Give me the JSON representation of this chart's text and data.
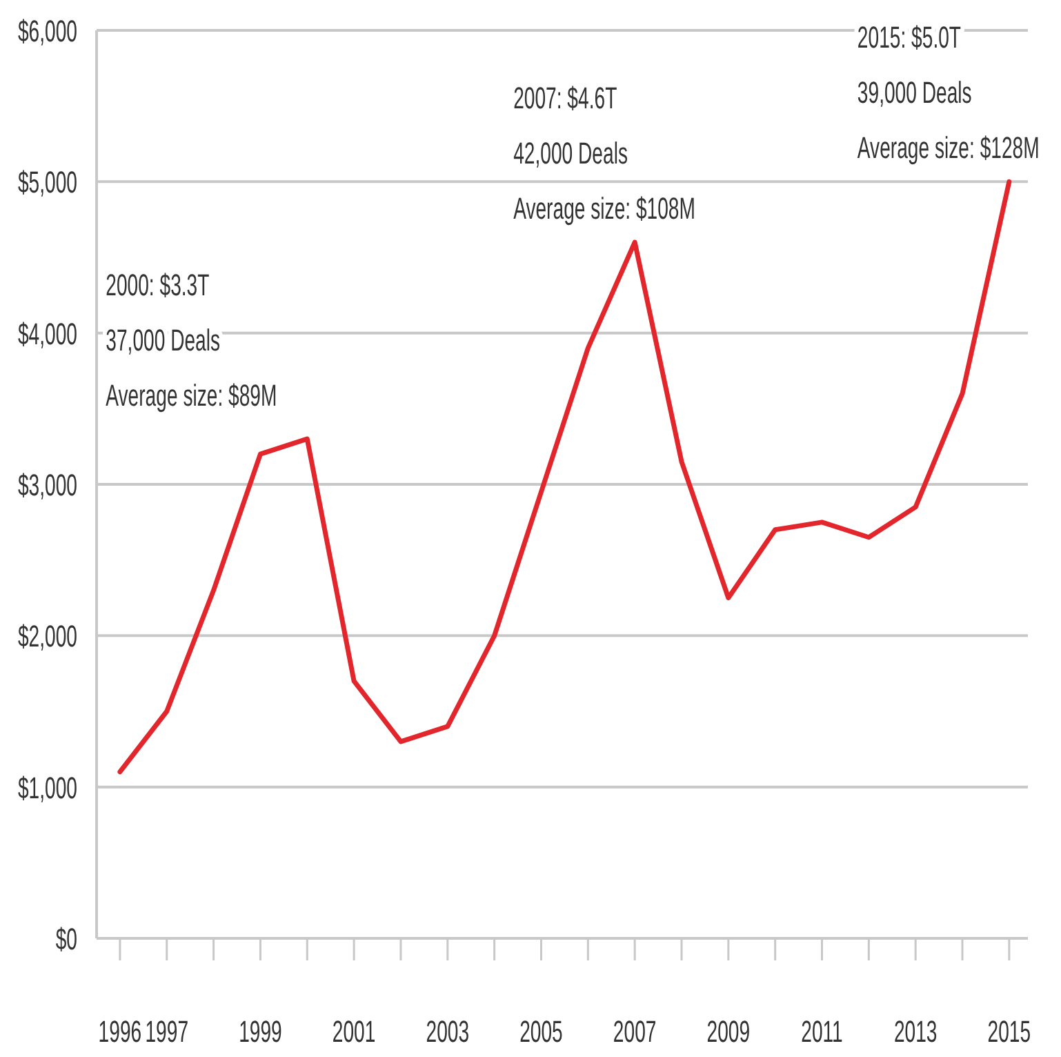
{
  "chart_data": {
    "type": "line",
    "x": [
      1996,
      1997,
      1998,
      1999,
      2000,
      2001,
      2002,
      2003,
      2004,
      2005,
      2006,
      2007,
      2008,
      2009,
      2010,
      2011,
      2012,
      2013,
      2014,
      2015
    ],
    "series": [
      {
        "color": "#e3262b",
        "values": [
          1100,
          1500,
          2300,
          3200,
          3300,
          1700,
          1300,
          1400,
          2000,
          2950,
          3900,
          4600,
          3150,
          2250,
          2700,
          2750,
          2650,
          2850,
          3600,
          5000
        ]
      }
    ],
    "xlim": [
      1995.5,
      2015.4
    ],
    "xticks": [
      1996,
      1997,
      {
        "value": 1998,
        "label": null
      },
      1999,
      {
        "value": 2000,
        "label": null
      },
      2001,
      {
        "value": 2002,
        "label": null
      },
      2003,
      {
        "value": 2004,
        "label": null
      },
      2005,
      {
        "value": 2006,
        "label": null
      },
      2007,
      {
        "value": 2008,
        "label": null
      },
      2009,
      {
        "value": 2010,
        "label": null
      },
      2011,
      {
        "value": 2012,
        "label": null
      },
      2013,
      {
        "value": 2014,
        "label": null
      },
      2015
    ],
    "ylim": [
      0,
      6000
    ],
    "yticks": [
      {
        "value": 0,
        "label": "$0"
      },
      {
        "value": 1000,
        "label": "$1,000"
      },
      {
        "value": 2000,
        "label": "$2,000"
      },
      {
        "value": 3000,
        "label": "$3,000"
      },
      {
        "value": 4000,
        "label": "$4,000"
      },
      {
        "value": 5000,
        "label": "$5,000"
      },
      {
        "value": 6000,
        "label": "$6,000"
      }
    ],
    "grid": "y",
    "annotations": [
      {
        "text": "2000: $3.3T\n37,000 Deals\nAverage size: $89M",
        "x": 2000,
        "y": 3300
      },
      {
        "text": "2007: $4.6T\n42,000 Deals\nAverage size: $108M",
        "x": 2007,
        "y": 4600
      },
      {
        "text": "2015: $5.0T\n39,000 Deals\nAverage size: $128M",
        "x": 2015,
        "y": 5000
      }
    ]
  }
}
